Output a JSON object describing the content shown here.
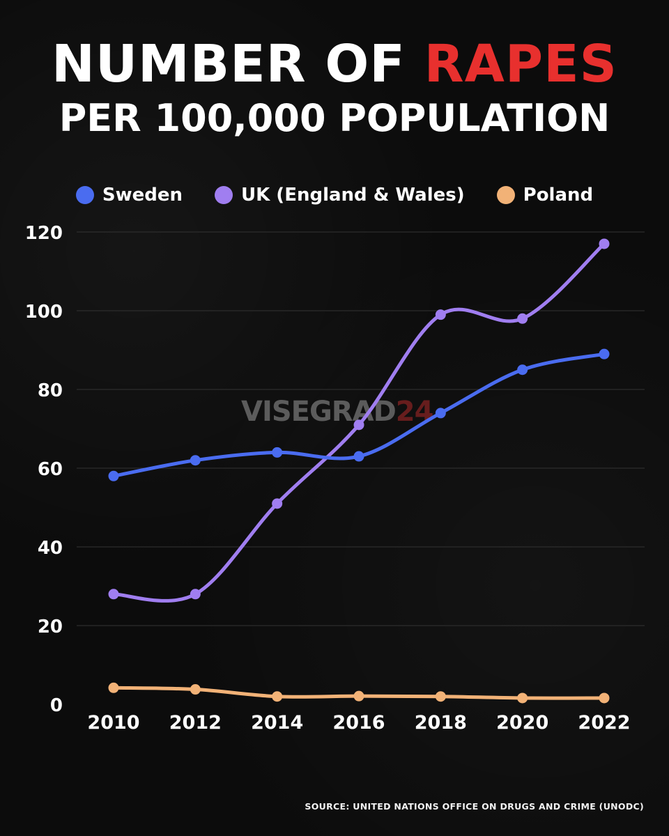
{
  "title": {
    "line1_prefix": "NUMBER OF ",
    "line1_accent": "RAPES",
    "line2": "PER 100,000 POPULATION"
  },
  "colors": {
    "background": "#0b0b0b",
    "accent": "#e8302e",
    "sweden": "#4a6cf0",
    "uk": "#a07ef0",
    "poland": "#f2b277",
    "grid": "#333333"
  },
  "legend": [
    {
      "label": "Sweden",
      "color": "#4a6cf0"
    },
    {
      "label": "UK (England & Wales)",
      "color": "#a07ef0"
    },
    {
      "label": "Poland",
      "color": "#f2b277"
    }
  ],
  "watermark": {
    "part1": "VISEGRAD",
    "part2": "24"
  },
  "source": "SOURCE: UNITED NATIONS OFFICE ON DRUGS AND CRIME (UNODC)",
  "chart_data": {
    "type": "line",
    "title": "NUMBER OF RAPES PER 100,000 POPULATION",
    "xlabel": "",
    "ylabel": "",
    "categories": [
      "2010",
      "2012",
      "2014",
      "2016",
      "2018",
      "2020",
      "2022"
    ],
    "ylim": [
      0,
      120
    ],
    "yticks": [
      0,
      20,
      40,
      60,
      80,
      100,
      120
    ],
    "grid": true,
    "legend_position": "top",
    "series": [
      {
        "name": "Sweden",
        "color": "#4a6cf0",
        "values": [
          58,
          62,
          64,
          63,
          74,
          85,
          89
        ]
      },
      {
        "name": "UK (England & Wales)",
        "color": "#a07ef0",
        "values": [
          28,
          28,
          51,
          71,
          99,
          98,
          117
        ]
      },
      {
        "name": "Poland",
        "color": "#f2b277",
        "values": [
          4.2,
          3.8,
          2.0,
          2.1,
          2.0,
          1.6,
          1.6
        ]
      }
    ]
  }
}
